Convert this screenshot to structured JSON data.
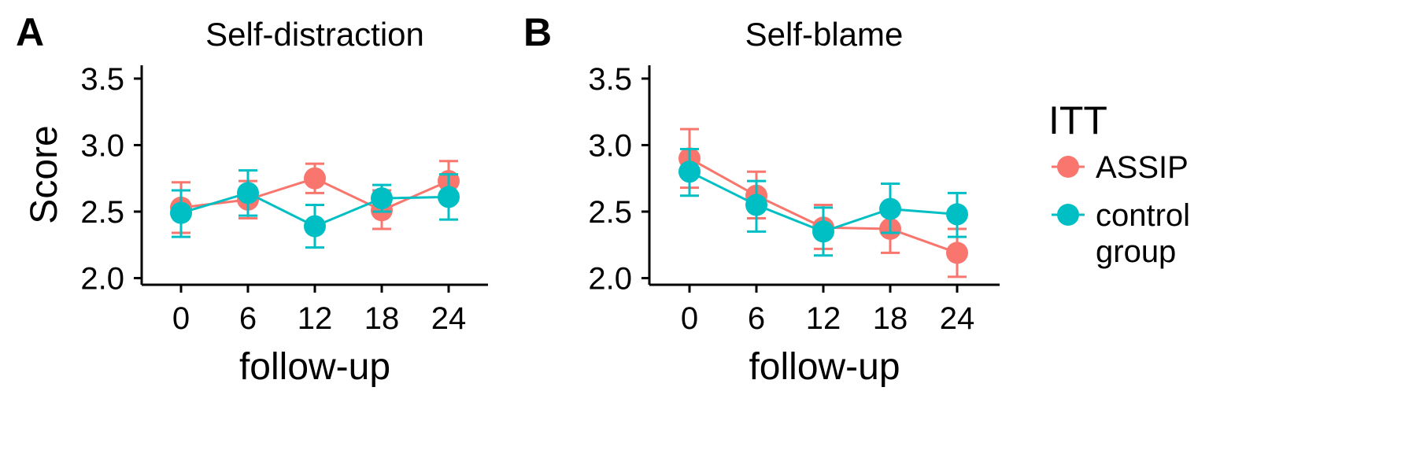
{
  "chart_data": {
    "type": "line",
    "ylabel": "Score",
    "legend": {
      "title": "ITT",
      "position": "right",
      "entries": [
        {
          "label_lines": [
            "ASSIP"
          ],
          "color": "#F8766D"
        },
        {
          "label_lines": [
            "control",
            "group"
          ],
          "color": "#00BFC4"
        }
      ]
    },
    "panels": [
      {
        "tag": "A",
        "title": "Self-distraction",
        "xlabel": "follow-up",
        "x": [
          0,
          6,
          12,
          18,
          24
        ],
        "x_tick_labels": [
          "0",
          "6",
          "12",
          "18",
          "24"
        ],
        "ylim": [
          1.95,
          3.6
        ],
        "y_ticks": [
          2.0,
          2.5,
          3.0,
          3.5
        ],
        "y_tick_labels": [
          "2.0",
          "2.5",
          "3.0",
          "3.5"
        ],
        "series": [
          {
            "name": "ASSIP",
            "color": "#F8766D",
            "values": [
              2.53,
              2.59,
              2.75,
              2.51,
              2.73
            ],
            "lower": [
              2.34,
              2.45,
              2.64,
              2.37,
              2.58
            ],
            "upper": [
              2.72,
              2.73,
              2.86,
              2.66,
              2.88
            ]
          },
          {
            "name": "control group",
            "color": "#00BFC4",
            "values": [
              2.49,
              2.64,
              2.39,
              2.6,
              2.61
            ],
            "lower": [
              2.31,
              2.47,
              2.23,
              2.5,
              2.44
            ],
            "upper": [
              2.66,
              2.81,
              2.55,
              2.7,
              2.78
            ]
          }
        ]
      },
      {
        "tag": "B",
        "title": "Self-blame",
        "xlabel": "follow-up",
        "x": [
          0,
          6,
          12,
          18,
          24
        ],
        "x_tick_labels": [
          "0",
          "6",
          "12",
          "18",
          "24"
        ],
        "ylim": [
          1.95,
          3.6
        ],
        "y_ticks": [
          2.0,
          2.5,
          3.0,
          3.5
        ],
        "y_tick_labels": [
          "2.0",
          "2.5",
          "3.0",
          "3.5"
        ],
        "series": [
          {
            "name": "ASSIP",
            "color": "#F8766D",
            "values": [
              2.9,
              2.62,
              2.38,
              2.37,
              2.19
            ],
            "lower": [
              2.68,
              2.45,
              2.22,
              2.19,
              2.01
            ],
            "upper": [
              3.12,
              2.8,
              2.55,
              2.54,
              2.37
            ]
          },
          {
            "name": "control group",
            "color": "#00BFC4",
            "values": [
              2.8,
              2.55,
              2.35,
              2.52,
              2.48
            ],
            "lower": [
              2.62,
              2.35,
              2.17,
              2.34,
              2.31
            ],
            "upper": [
              2.97,
              2.73,
              2.53,
              2.71,
              2.64
            ]
          }
        ]
      }
    ]
  }
}
